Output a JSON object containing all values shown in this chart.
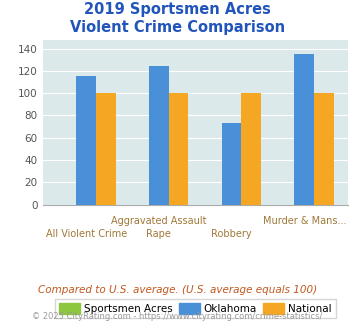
{
  "title_line1": "2019 Sportsmen Acres",
  "title_line2": "Violent Crime Comparison",
  "color_sa": "#8dc63f",
  "color_ok": "#4a90d9",
  "color_nat": "#f5a623",
  "ylim": [
    0,
    148
  ],
  "yticks": [
    0,
    20,
    40,
    60,
    80,
    100,
    120,
    140
  ],
  "background_color": "#dce9ea",
  "title_color": "#2255bb",
  "xlabel_color": "#a07838",
  "legend_labels": [
    "Sportsmen Acres",
    "Oklahoma",
    "National"
  ],
  "footer1": "Compared to U.S. average. (U.S. average equals 100)",
  "footer2": "© 2025 CityRating.com - https://www.cityrating.com/crime-statistics/",
  "footer1_color": "#c05820",
  "footer2_color": "#999999",
  "groups": [
    {
      "label_top": "",
      "label_bot": "All Violent Crime",
      "sa": 0,
      "ok": 115,
      "nat": 100
    },
    {
      "label_top": "Aggravated Assault",
      "label_bot": "Rape",
      "sa": 0,
      "ok": 124,
      "nat": 100
    },
    {
      "label_top": "",
      "label_bot": "Robbery",
      "sa": 0,
      "ok": 73,
      "nat": 100
    },
    {
      "label_top": "Murder & Mans...",
      "label_bot": "",
      "sa": 0,
      "ok": 135,
      "nat": 100
    }
  ]
}
